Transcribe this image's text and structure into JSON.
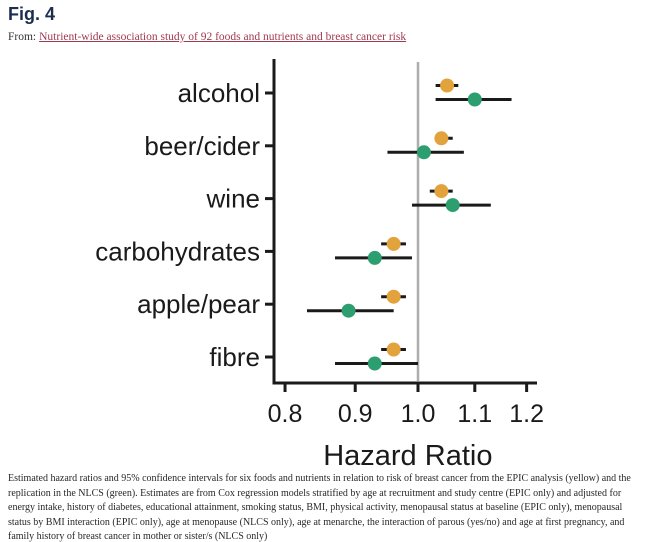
{
  "header": {
    "figure_label": "Fig. 4",
    "from_label": "From:",
    "article_link_text": "Nutrient-wide association study of 92 foods and nutrients and breast cancer risk"
  },
  "caption": {
    "text": "Estimated hazard ratios and 95% confidence intervals for six foods and nutrients in relation to risk of breast cancer from the EPIC analysis (yellow) and the replication in the NLCS (green). Estimates are from Cox regression models stratified by age at recruitment and study centre (EPIC only) and adjusted for energy intake, history of diabetes, educational attainment, smoking status, BMI, physical activity, menopausal status at baseline (EPIC only), menopausal status by BMI interaction (EPIC only), age at menopause (NLCS only), age at menarche, the interaction of parous (yes/no) and age at first pregnancy, and family history of breast cancer in mother or sister/s (NLCS only)"
  },
  "colors": {
    "figure_title": "#1c2d4f",
    "link": "#a03a52",
    "plot_black": "#1a1a1a",
    "reference_gray": "#adadad",
    "epic_yellow": "#e2a23c",
    "nlcs_green": "#2d9e6f"
  },
  "chart_data": {
    "type": "forest",
    "title": "",
    "xlabel": "Hazard Ratio",
    "x_scale": "log",
    "x_range": [
      0.77,
      1.26
    ],
    "x_ticks": [
      0.8,
      0.9,
      1.0,
      1.1,
      1.2
    ],
    "x_tick_labels": [
      "0.8",
      "0.9",
      "1.0",
      "1.1",
      "1.2"
    ],
    "reference_line": 1.0,
    "grid": false,
    "legend": "none (series identified in caption: EPIC yellow, NLCS green)",
    "categories": [
      "alcohol",
      "beer/cider",
      "wine",
      "carbohydrates",
      "apple/pear",
      "fibre"
    ],
    "series": [
      {
        "name": "EPIC",
        "color": "#e2a23c",
        "points": [
          {
            "category": "alcohol",
            "est": 1.05,
            "lo": 1.03,
            "hi": 1.07
          },
          {
            "category": "beer/cider",
            "est": 1.04,
            "lo": 1.03,
            "hi": 1.06
          },
          {
            "category": "wine",
            "est": 1.04,
            "lo": 1.02,
            "hi": 1.06
          },
          {
            "category": "carbohydrates",
            "est": 0.96,
            "lo": 0.94,
            "hi": 0.98
          },
          {
            "category": "apple/pear",
            "est": 0.96,
            "lo": 0.94,
            "hi": 0.98
          },
          {
            "category": "fibre",
            "est": 0.96,
            "lo": 0.94,
            "hi": 0.98
          }
        ]
      },
      {
        "name": "NLCS",
        "color": "#2d9e6f",
        "points": [
          {
            "category": "alcohol",
            "est": 1.1,
            "lo": 1.03,
            "hi": 1.17
          },
          {
            "category": "beer/cider",
            "est": 1.01,
            "lo": 0.95,
            "hi": 1.08
          },
          {
            "category": "wine",
            "est": 1.06,
            "lo": 0.99,
            "hi": 1.13
          },
          {
            "category": "carbohydrates",
            "est": 0.93,
            "lo": 0.87,
            "hi": 0.99
          },
          {
            "category": "apple/pear",
            "est": 0.89,
            "lo": 0.83,
            "hi": 0.96
          },
          {
            "category": "fibre",
            "est": 0.93,
            "lo": 0.87,
            "hi": 1.0
          }
        ]
      }
    ]
  }
}
